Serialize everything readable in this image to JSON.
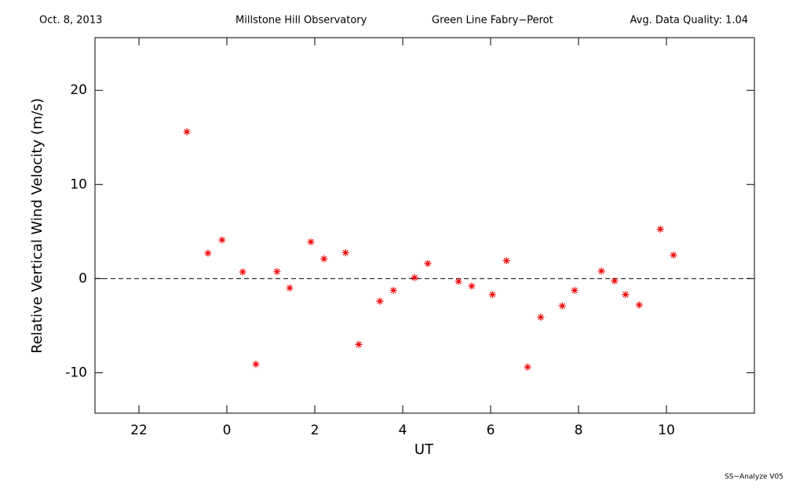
{
  "chart_data": {
    "type": "scatter",
    "date": "Oct. 8, 2013",
    "observatory": "Millstone Hill Observatory",
    "instrument": "Green Line Fabry−Perot",
    "quality_label": "Avg. Data Quality: 1.04",
    "software": "SS−Analyze V05",
    "x_label": "UT",
    "y_label": "Relative Vertical Wind Velocity (m/s)",
    "xlim": [
      -3,
      12
    ],
    "ylim": [
      -14.3,
      25.6
    ],
    "xticks": [
      {
        "value": -2,
        "label": "22"
      },
      0,
      2,
      4,
      6,
      8,
      10
    ],
    "yticks": [
      -10,
      0,
      10,
      20
    ],
    "reference_line": 0,
    "color": "#ff0000",
    "x": [
      -0.91,
      -0.43,
      -0.11,
      0.36,
      0.66,
      1.14,
      1.43,
      1.91,
      2.21,
      2.7,
      3.0,
      3.48,
      3.79,
      4.27,
      4.57,
      5.27,
      5.57,
      6.04,
      6.36,
      6.84,
      7.14,
      7.63,
      7.91,
      8.52,
      8.82,
      9.07,
      9.38,
      9.86,
      10.16
    ],
    "values": [
      15.6,
      2.7,
      4.1,
      0.7,
      -9.1,
      0.75,
      -1.0,
      3.9,
      2.1,
      2.75,
      -7.0,
      -2.4,
      -1.25,
      0.1,
      1.6,
      -0.3,
      -0.8,
      -1.7,
      1.9,
      -9.4,
      -4.1,
      -2.9,
      -1.25,
      0.8,
      -0.25,
      -1.7,
      -2.8,
      5.25,
      2.5
    ]
  }
}
